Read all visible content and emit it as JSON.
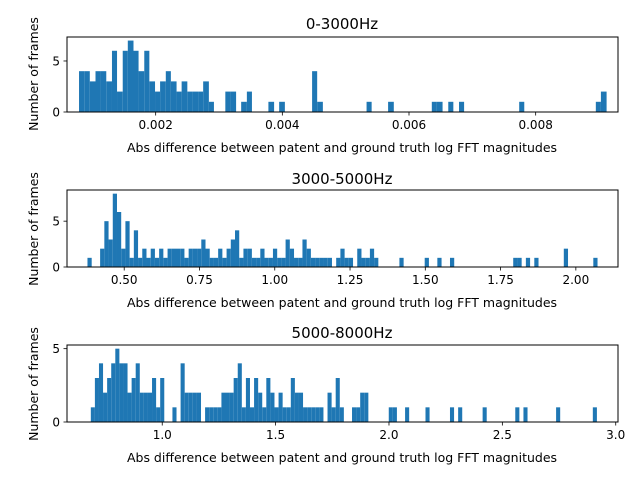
{
  "chart_data": [
    {
      "type": "bar",
      "title": "0-3000Hz",
      "xlabel": "Abs difference between patent and ground truth log FFT magnitudes",
      "ylabel": "Number of frames",
      "xlim": [
        0.0006,
        0.0093
      ],
      "ylim": [
        0,
        7.35
      ],
      "xticks": [
        0.002,
        0.004,
        0.006,
        0.008
      ],
      "xtick_labels": [
        "0.002",
        "0.004",
        "0.006",
        "0.008"
      ],
      "yticks": [
        0,
        5
      ],
      "ytick_labels": [
        "0",
        "5"
      ],
      "bar_color": "#1f77b4",
      "bars": [
        {
          "x0": 0.00079,
          "x1": 0.00088,
          "value": 4
        },
        {
          "x0": 0.00088,
          "x1": 0.00096,
          "value": 4
        },
        {
          "x0": 0.00096,
          "x1": 0.00105,
          "value": 3
        },
        {
          "x0": 0.00105,
          "x1": 0.00113,
          "value": 4
        },
        {
          "x0": 0.00113,
          "x1": 0.00122,
          "value": 4
        },
        {
          "x0": 0.00122,
          "x1": 0.00131,
          "value": 3
        },
        {
          "x0": 0.00131,
          "x1": 0.00139,
          "value": 6
        },
        {
          "x0": 0.00139,
          "x1": 0.00148,
          "value": 2
        },
        {
          "x0": 0.00148,
          "x1": 0.00156,
          "value": 6
        },
        {
          "x0": 0.00156,
          "x1": 0.00165,
          "value": 7
        },
        {
          "x0": 0.00165,
          "x1": 0.00173,
          "value": 6
        },
        {
          "x0": 0.00173,
          "x1": 0.00182,
          "value": 4
        },
        {
          "x0": 0.00182,
          "x1": 0.0019,
          "value": 6
        },
        {
          "x0": 0.0019,
          "x1": 0.00199,
          "value": 3
        },
        {
          "x0": 0.00199,
          "x1": 0.00207,
          "value": 2
        },
        {
          "x0": 0.00207,
          "x1": 0.00216,
          "value": 3
        },
        {
          "x0": 0.00216,
          "x1": 0.00224,
          "value": 4
        },
        {
          "x0": 0.00224,
          "x1": 0.00233,
          "value": 3
        },
        {
          "x0": 0.00233,
          "x1": 0.00241,
          "value": 2
        },
        {
          "x0": 0.00241,
          "x1": 0.0025,
          "value": 3
        },
        {
          "x0": 0.0025,
          "x1": 0.00258,
          "value": 2
        },
        {
          "x0": 0.00258,
          "x1": 0.00267,
          "value": 2
        },
        {
          "x0": 0.00267,
          "x1": 0.00275,
          "value": 2
        },
        {
          "x0": 0.00275,
          "x1": 0.00284,
          "value": 3
        },
        {
          "x0": 0.00284,
          "x1": 0.00292,
          "value": 1
        },
        {
          "x0": 0.0031,
          "x1": 0.00318,
          "value": 2
        },
        {
          "x0": 0.00318,
          "x1": 0.00327,
          "value": 2
        },
        {
          "x0": 0.00335,
          "x1": 0.00344,
          "value": 1
        },
        {
          "x0": 0.00344,
          "x1": 0.00352,
          "value": 2
        },
        {
          "x0": 0.00378,
          "x1": 0.00387,
          "value": 1
        },
        {
          "x0": 0.00395,
          "x1": 0.00404,
          "value": 1
        },
        {
          "x0": 0.00447,
          "x1": 0.00455,
          "value": 4
        },
        {
          "x0": 0.00455,
          "x1": 0.00464,
          "value": 1
        },
        {
          "x0": 0.00533,
          "x1": 0.00541,
          "value": 1
        },
        {
          "x0": 0.00567,
          "x1": 0.00576,
          "value": 1
        },
        {
          "x0": 0.00636,
          "x1": 0.00644,
          "value": 1
        },
        {
          "x0": 0.00644,
          "x1": 0.00653,
          "value": 1
        },
        {
          "x0": 0.00662,
          "x1": 0.0067,
          "value": 1
        },
        {
          "x0": 0.00679,
          "x1": 0.00687,
          "value": 1
        },
        {
          "x0": 0.00774,
          "x1": 0.00782,
          "value": 1
        },
        {
          "x0": 0.00895,
          "x1": 0.00903,
          "value": 1
        },
        {
          "x0": 0.00903,
          "x1": 0.00912,
          "value": 2
        }
      ]
    },
    {
      "type": "bar",
      "title": "3000-5000Hz",
      "xlabel": "Abs difference between patent and ground truth log FFT magnitudes",
      "ylabel": "Number of frames",
      "xlim": [
        0.31,
        2.14
      ],
      "ylim": [
        0,
        8.4
      ],
      "xticks": [
        0.5,
        0.75,
        1.0,
        1.25,
        1.5,
        1.75,
        2.0
      ],
      "xtick_labels": [
        "0.50",
        "0.75",
        "1.00",
        "1.25",
        "1.50",
        "1.75",
        "2.00"
      ],
      "yticks": [
        0,
        5
      ],
      "ytick_labels": [
        "0",
        "5"
      ],
      "bar_color": "#1f77b4",
      "bars": [
        {
          "x0": 0.378,
          "x1": 0.392,
          "value": 1
        },
        {
          "x0": 0.42,
          "x1": 0.434,
          "value": 2
        },
        {
          "x0": 0.434,
          "x1": 0.448,
          "value": 5
        },
        {
          "x0": 0.448,
          "x1": 0.462,
          "value": 3
        },
        {
          "x0": 0.462,
          "x1": 0.476,
          "value": 8
        },
        {
          "x0": 0.476,
          "x1": 0.49,
          "value": 6
        },
        {
          "x0": 0.49,
          "x1": 0.504,
          "value": 2
        },
        {
          "x0": 0.504,
          "x1": 0.518,
          "value": 5
        },
        {
          "x0": 0.518,
          "x1": 0.532,
          "value": 1
        },
        {
          "x0": 0.532,
          "x1": 0.546,
          "value": 4
        },
        {
          "x0": 0.546,
          "x1": 0.56,
          "value": 1
        },
        {
          "x0": 0.56,
          "x1": 0.574,
          "value": 2
        },
        {
          "x0": 0.574,
          "x1": 0.588,
          "value": 1
        },
        {
          "x0": 0.588,
          "x1": 0.602,
          "value": 2
        },
        {
          "x0": 0.602,
          "x1": 0.616,
          "value": 1
        },
        {
          "x0": 0.616,
          "x1": 0.63,
          "value": 2
        },
        {
          "x0": 0.63,
          "x1": 0.644,
          "value": 1
        },
        {
          "x0": 0.644,
          "x1": 0.658,
          "value": 2
        },
        {
          "x0": 0.658,
          "x1": 0.672,
          "value": 2
        },
        {
          "x0": 0.672,
          "x1": 0.686,
          "value": 2
        },
        {
          "x0": 0.686,
          "x1": 0.7,
          "value": 2
        },
        {
          "x0": 0.7,
          "x1": 0.714,
          "value": 1
        },
        {
          "x0": 0.714,
          "x1": 0.728,
          "value": 2
        },
        {
          "x0": 0.728,
          "x1": 0.742,
          "value": 2
        },
        {
          "x0": 0.742,
          "x1": 0.756,
          "value": 2
        },
        {
          "x0": 0.756,
          "x1": 0.77,
          "value": 3
        },
        {
          "x0": 0.77,
          "x1": 0.784,
          "value": 2
        },
        {
          "x0": 0.784,
          "x1": 0.798,
          "value": 1
        },
        {
          "x0": 0.798,
          "x1": 0.812,
          "value": 1
        },
        {
          "x0": 0.812,
          "x1": 0.826,
          "value": 2
        },
        {
          "x0": 0.826,
          "x1": 0.84,
          "value": 1
        },
        {
          "x0": 0.84,
          "x1": 0.854,
          "value": 2
        },
        {
          "x0": 0.854,
          "x1": 0.868,
          "value": 3
        },
        {
          "x0": 0.868,
          "x1": 0.882,
          "value": 4
        },
        {
          "x0": 0.882,
          "x1": 0.896,
          "value": 1
        },
        {
          "x0": 0.896,
          "x1": 0.91,
          "value": 2
        },
        {
          "x0": 0.91,
          "x1": 0.924,
          "value": 2
        },
        {
          "x0": 0.924,
          "x1": 0.938,
          "value": 1
        },
        {
          "x0": 0.938,
          "x1": 0.952,
          "value": 1
        },
        {
          "x0": 0.952,
          "x1": 0.966,
          "value": 2
        },
        {
          "x0": 0.966,
          "x1": 0.98,
          "value": 1
        },
        {
          "x0": 0.98,
          "x1": 0.994,
          "value": 1
        },
        {
          "x0": 0.994,
          "x1": 1.008,
          "value": 2
        },
        {
          "x0": 1.008,
          "x1": 1.022,
          "value": 1
        },
        {
          "x0": 1.022,
          "x1": 1.036,
          "value": 1
        },
        {
          "x0": 1.036,
          "x1": 1.05,
          "value": 3
        },
        {
          "x0": 1.05,
          "x1": 1.064,
          "value": 2
        },
        {
          "x0": 1.064,
          "x1": 1.078,
          "value": 1
        },
        {
          "x0": 1.078,
          "x1": 1.092,
          "value": 1
        },
        {
          "x0": 1.092,
          "x1": 1.106,
          "value": 3
        },
        {
          "x0": 1.106,
          "x1": 1.12,
          "value": 2
        },
        {
          "x0": 1.12,
          "x1": 1.134,
          "value": 1
        },
        {
          "x0": 1.134,
          "x1": 1.148,
          "value": 1
        },
        {
          "x0": 1.148,
          "x1": 1.162,
          "value": 1
        },
        {
          "x0": 1.162,
          "x1": 1.176,
          "value": 1
        },
        {
          "x0": 1.176,
          "x1": 1.19,
          "value": 1
        },
        {
          "x0": 1.204,
          "x1": 1.218,
          "value": 1
        },
        {
          "x0": 1.218,
          "x1": 1.232,
          "value": 2
        },
        {
          "x0": 1.232,
          "x1": 1.246,
          "value": 1
        },
        {
          "x0": 1.246,
          "x1": 1.26,
          "value": 1
        },
        {
          "x0": 1.274,
          "x1": 1.288,
          "value": 2
        },
        {
          "x0": 1.288,
          "x1": 1.302,
          "value": 1
        },
        {
          "x0": 1.302,
          "x1": 1.316,
          "value": 1
        },
        {
          "x0": 1.316,
          "x1": 1.33,
          "value": 2
        },
        {
          "x0": 1.33,
          "x1": 1.344,
          "value": 1
        },
        {
          "x0": 1.414,
          "x1": 1.428,
          "value": 1
        },
        {
          "x0": 1.498,
          "x1": 1.512,
          "value": 1
        },
        {
          "x0": 1.54,
          "x1": 1.554,
          "value": 1
        },
        {
          "x0": 1.582,
          "x1": 1.596,
          "value": 1
        },
        {
          "x0": 1.792,
          "x1": 1.806,
          "value": 1
        },
        {
          "x0": 1.806,
          "x1": 1.82,
          "value": 1
        },
        {
          "x0": 1.834,
          "x1": 1.848,
          "value": 1
        },
        {
          "x0": 1.862,
          "x1": 1.876,
          "value": 1
        },
        {
          "x0": 1.96,
          "x1": 1.974,
          "value": 2
        },
        {
          "x0": 2.058,
          "x1": 2.072,
          "value": 1
        }
      ]
    },
    {
      "type": "bar",
      "title": "5000-8000Hz",
      "xlabel": "Abs difference between patent and ground truth log FFT magnitudes",
      "ylabel": "Number of frames",
      "xlim": [
        0.58,
        3.01
      ],
      "ylim": [
        0,
        5.25
      ],
      "xticks": [
        1.0,
        1.5,
        2.0,
        2.5,
        3.0
      ],
      "xtick_labels": [
        "1.0",
        "1.5",
        "2.0",
        "2.5",
        "3.0"
      ],
      "yticks": [
        0,
        5
      ],
      "ytick_labels": [
        "0",
        "5"
      ],
      "bar_color": "#1f77b4",
      "bars": [
        {
          "x0": 0.685,
          "x1": 0.703,
          "value": 1
        },
        {
          "x0": 0.703,
          "x1": 0.721,
          "value": 3
        },
        {
          "x0": 0.721,
          "x1": 0.739,
          "value": 4
        },
        {
          "x0": 0.739,
          "x1": 0.757,
          "value": 2
        },
        {
          "x0": 0.757,
          "x1": 0.775,
          "value": 3
        },
        {
          "x0": 0.775,
          "x1": 0.793,
          "value": 4
        },
        {
          "x0": 0.793,
          "x1": 0.811,
          "value": 5
        },
        {
          "x0": 0.811,
          "x1": 0.829,
          "value": 4
        },
        {
          "x0": 0.829,
          "x1": 0.847,
          "value": 4
        },
        {
          "x0": 0.847,
          "x1": 0.865,
          "value": 2
        },
        {
          "x0": 0.865,
          "x1": 0.883,
          "value": 3
        },
        {
          "x0": 0.883,
          "x1": 0.901,
          "value": 4
        },
        {
          "x0": 0.901,
          "x1": 0.919,
          "value": 2
        },
        {
          "x0": 0.919,
          "x1": 0.937,
          "value": 2
        },
        {
          "x0": 0.937,
          "x1": 0.955,
          "value": 2
        },
        {
          "x0": 0.955,
          "x1": 0.973,
          "value": 3
        },
        {
          "x0": 0.973,
          "x1": 0.991,
          "value": 1
        },
        {
          "x0": 0.991,
          "x1": 1.009,
          "value": 3
        },
        {
          "x0": 1.045,
          "x1": 1.063,
          "value": 1
        },
        {
          "x0": 1.081,
          "x1": 1.099,
          "value": 4
        },
        {
          "x0": 1.099,
          "x1": 1.117,
          "value": 2
        },
        {
          "x0": 1.117,
          "x1": 1.135,
          "value": 2
        },
        {
          "x0": 1.135,
          "x1": 1.153,
          "value": 2
        },
        {
          "x0": 1.153,
          "x1": 1.171,
          "value": 2
        },
        {
          "x0": 1.189,
          "x1": 1.207,
          "value": 1
        },
        {
          "x0": 1.207,
          "x1": 1.225,
          "value": 1
        },
        {
          "x0": 1.225,
          "x1": 1.243,
          "value": 1
        },
        {
          "x0": 1.243,
          "x1": 1.261,
          "value": 1
        },
        {
          "x0": 1.261,
          "x1": 1.279,
          "value": 2
        },
        {
          "x0": 1.279,
          "x1": 1.297,
          "value": 2
        },
        {
          "x0": 1.297,
          "x1": 1.315,
          "value": 2
        },
        {
          "x0": 1.315,
          "x1": 1.333,
          "value": 3
        },
        {
          "x0": 1.333,
          "x1": 1.351,
          "value": 4
        },
        {
          "x0": 1.351,
          "x1": 1.369,
          "value": 1
        },
        {
          "x0": 1.369,
          "x1": 1.387,
          "value": 3
        },
        {
          "x0": 1.387,
          "x1": 1.405,
          "value": 1
        },
        {
          "x0": 1.405,
          "x1": 1.423,
          "value": 3
        },
        {
          "x0": 1.423,
          "x1": 1.441,
          "value": 2
        },
        {
          "x0": 1.441,
          "x1": 1.459,
          "value": 1
        },
        {
          "x0": 1.459,
          "x1": 1.477,
          "value": 3
        },
        {
          "x0": 1.477,
          "x1": 1.495,
          "value": 2
        },
        {
          "x0": 1.495,
          "x1": 1.513,
          "value": 1
        },
        {
          "x0": 1.513,
          "x1": 1.531,
          "value": 2
        },
        {
          "x0": 1.531,
          "x1": 1.549,
          "value": 1
        },
        {
          "x0": 1.549,
          "x1": 1.567,
          "value": 1
        },
        {
          "x0": 1.567,
          "x1": 1.585,
          "value": 3
        },
        {
          "x0": 1.585,
          "x1": 1.603,
          "value": 2
        },
        {
          "x0": 1.603,
          "x1": 1.621,
          "value": 2
        },
        {
          "x0": 1.621,
          "x1": 1.639,
          "value": 1
        },
        {
          "x0": 1.639,
          "x1": 1.657,
          "value": 1
        },
        {
          "x0": 1.657,
          "x1": 1.675,
          "value": 1
        },
        {
          "x0": 1.675,
          "x1": 1.693,
          "value": 1
        },
        {
          "x0": 1.693,
          "x1": 1.711,
          "value": 1
        },
        {
          "x0": 1.729,
          "x1": 1.747,
          "value": 2
        },
        {
          "x0": 1.747,
          "x1": 1.765,
          "value": 1
        },
        {
          "x0": 1.765,
          "x1": 1.783,
          "value": 3
        },
        {
          "x0": 1.783,
          "x1": 1.801,
          "value": 1
        },
        {
          "x0": 1.837,
          "x1": 1.855,
          "value": 1
        },
        {
          "x0": 1.855,
          "x1": 1.873,
          "value": 1
        },
        {
          "x0": 1.873,
          "x1": 1.891,
          "value": 2
        },
        {
          "x0": 1.891,
          "x1": 1.909,
          "value": 2
        },
        {
          "x0": 1.999,
          "x1": 2.017,
          "value": 1
        },
        {
          "x0": 2.017,
          "x1": 2.035,
          "value": 1
        },
        {
          "x0": 2.071,
          "x1": 2.089,
          "value": 1
        },
        {
          "x0": 2.161,
          "x1": 2.179,
          "value": 1
        },
        {
          "x0": 2.269,
          "x1": 2.287,
          "value": 1
        },
        {
          "x0": 2.305,
          "x1": 2.323,
          "value": 1
        },
        {
          "x0": 2.413,
          "x1": 2.431,
          "value": 1
        },
        {
          "x0": 2.557,
          "x1": 2.575,
          "value": 1
        },
        {
          "x0": 2.593,
          "x1": 2.611,
          "value": 1
        },
        {
          "x0": 2.737,
          "x1": 2.755,
          "value": 1
        },
        {
          "x0": 2.899,
          "x1": 2.917,
          "value": 1
        }
      ]
    }
  ]
}
